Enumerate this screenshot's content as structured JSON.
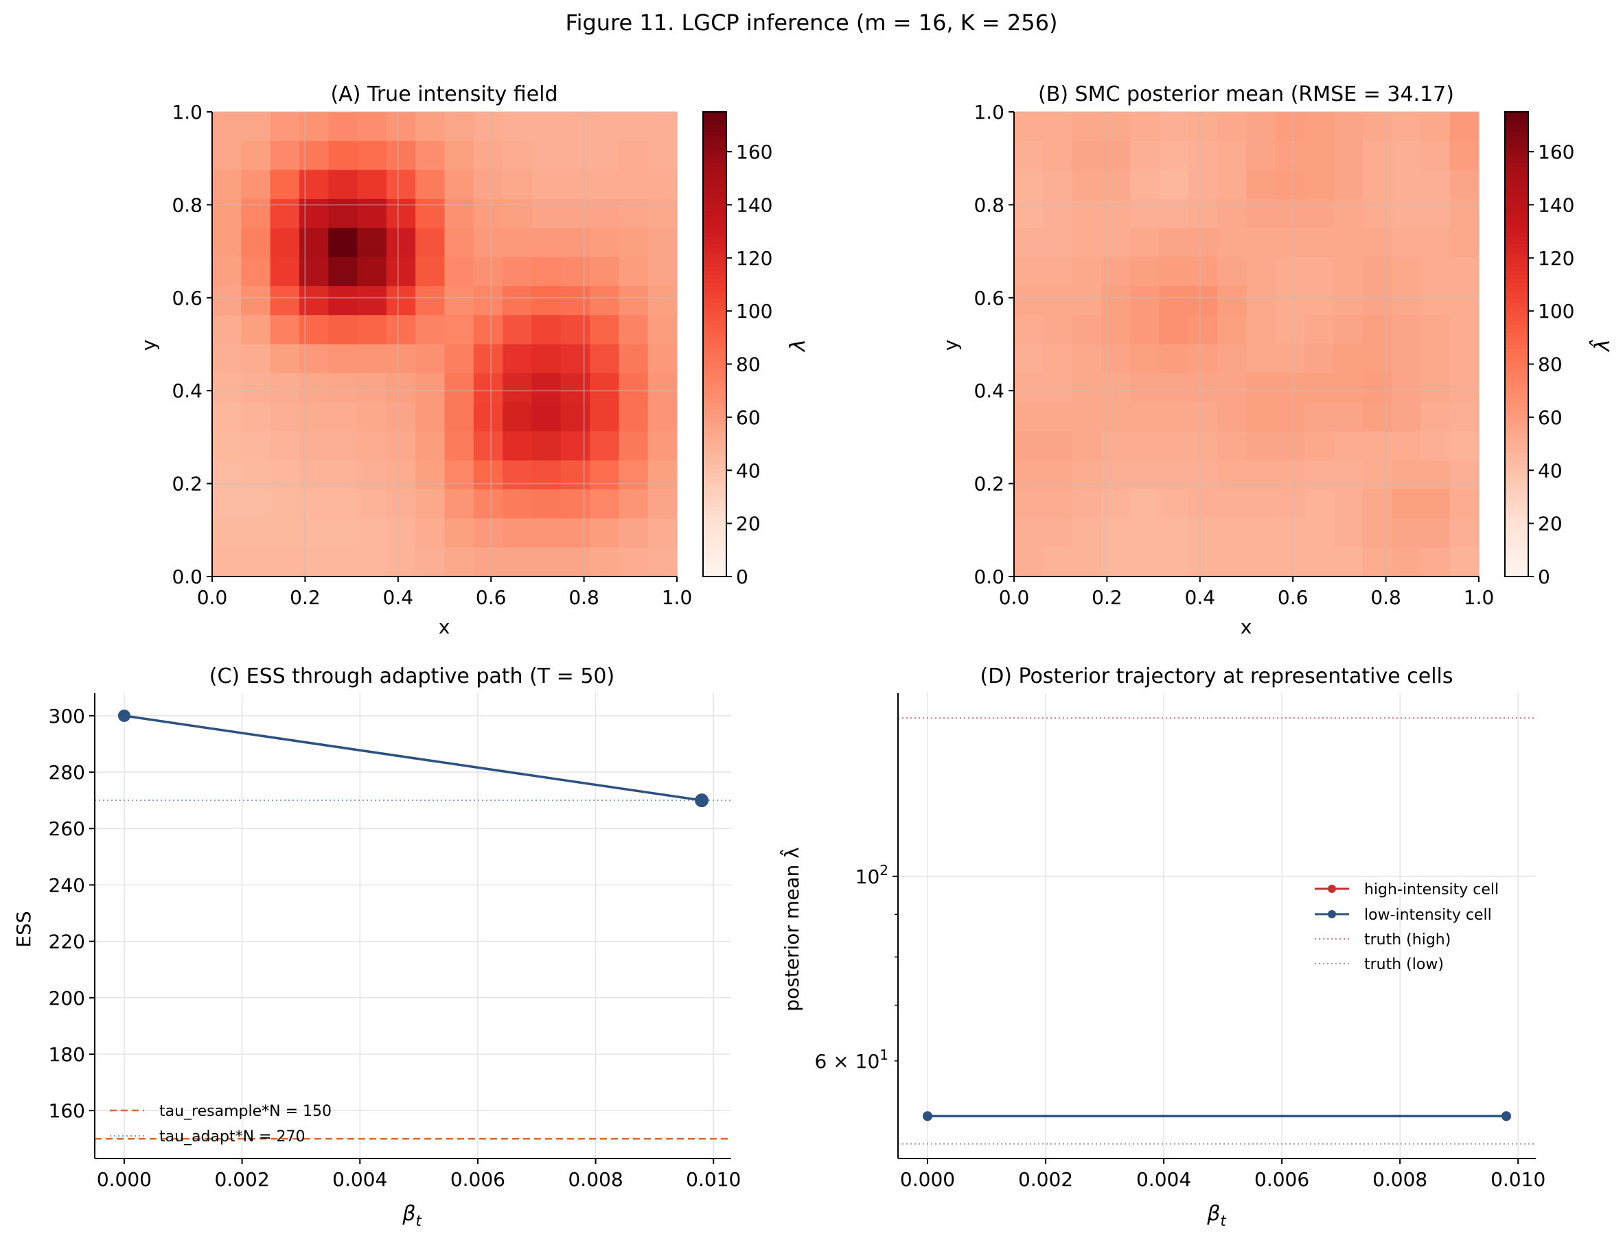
{
  "figure": {
    "title": "Figure 11. LGCP inference (m = 16, K = 256)"
  },
  "colors": {
    "cmap_reds": [
      "#fff5f0",
      "#fee0d2",
      "#fcbba1",
      "#fc9272",
      "#fb6a4a",
      "#ef3b2c",
      "#cb181d",
      "#a50f15",
      "#67000d"
    ],
    "series_blue": "#2c5282",
    "series_red": "#c53030",
    "resample_line": "#dd6b20",
    "adapt_line": "#7a9fd6",
    "truth_high": "#e57373",
    "truth_low": "#8c96b8"
  },
  "chart_data": [
    {
      "type": "heatmap",
      "panel": "A",
      "title": "(A) True intensity field",
      "xlabel": "x",
      "ylabel": "y",
      "xlim": [
        0,
        1
      ],
      "ylim": [
        0,
        1
      ],
      "x_ticks": [
        "0.0",
        "0.2",
        "0.4",
        "0.6",
        "0.8",
        "1.0"
      ],
      "y_ticks": [
        "0.0",
        "0.2",
        "0.4",
        "0.6",
        "0.8",
        "1.0"
      ],
      "colorbar_label": "λ",
      "colorbar_range": [
        0,
        175
      ],
      "colorbar_ticks": [
        "0",
        "20",
        "40",
        "60",
        "80",
        "100",
        "120",
        "140",
        "160"
      ],
      "grid_size": [
        16,
        16
      ],
      "grid": true,
      "rows_top_to_bottom": [
        [
          55,
          55,
          62,
          65,
          70,
          68,
          64,
          58,
          55,
          52,
          50,
          50,
          50,
          50,
          50,
          50
        ],
        [
          55,
          58,
          70,
          80,
          88,
          86,
          80,
          68,
          58,
          54,
          52,
          50,
          50,
          50,
          52,
          50
        ],
        [
          58,
          65,
          88,
          110,
          118,
          112,
          98,
          78,
          62,
          56,
          54,
          52,
          52,
          52,
          52,
          52
        ],
        [
          60,
          72,
          105,
          135,
          145,
          138,
          118,
          92,
          66,
          60,
          58,
          56,
          56,
          56,
          55,
          54
        ],
        [
          60,
          75,
          112,
          150,
          175,
          160,
          130,
          98,
          68,
          62,
          62,
          62,
          62,
          60,
          58,
          56
        ],
        [
          58,
          72,
          110,
          148,
          165,
          155,
          128,
          96,
          70,
          66,
          70,
          72,
          70,
          66,
          60,
          56
        ],
        [
          56,
          66,
          95,
          120,
          130,
          128,
          108,
          84,
          68,
          72,
          82,
          86,
          84,
          76,
          66,
          58
        ],
        [
          52,
          58,
          75,
          88,
          92,
          90,
          84,
          74,
          72,
          84,
          98,
          105,
          102,
          90,
          74,
          60
        ],
        [
          50,
          52,
          58,
          62,
          64,
          64,
          64,
          66,
          76,
          98,
          115,
          118,
          115,
          100,
          80,
          62
        ],
        [
          48,
          50,
          52,
          54,
          55,
          56,
          58,
          62,
          80,
          105,
          122,
          128,
          122,
          108,
          84,
          64
        ],
        [
          46,
          48,
          50,
          52,
          52,
          54,
          56,
          62,
          80,
          106,
          125,
          130,
          124,
          108,
          84,
          64
        ],
        [
          45,
          46,
          48,
          50,
          50,
          52,
          54,
          60,
          78,
          100,
          118,
          120,
          115,
          100,
          80,
          62
        ],
        [
          44,
          45,
          46,
          48,
          48,
          50,
          52,
          58,
          72,
          88,
          98,
          100,
          96,
          86,
          72,
          58
        ],
        [
          44,
          44,
          45,
          46,
          46,
          48,
          50,
          54,
          64,
          74,
          78,
          80,
          78,
          72,
          64,
          56
        ],
        [
          45,
          45,
          45,
          45,
          45,
          46,
          48,
          52,
          58,
          62,
          64,
          64,
          64,
          60,
          56,
          52
        ],
        [
          46,
          46,
          46,
          46,
          46,
          46,
          48,
          50,
          54,
          56,
          56,
          56,
          56,
          54,
          52,
          50
        ]
      ]
    },
    {
      "type": "heatmap",
      "panel": "B",
      "title": "(B) SMC posterior mean (RMSE = 34.17)",
      "xlabel": "x",
      "ylabel": "y",
      "xlim": [
        0,
        1
      ],
      "ylim": [
        0,
        1
      ],
      "x_ticks": [
        "0.0",
        "0.2",
        "0.4",
        "0.6",
        "0.8",
        "1.0"
      ],
      "y_ticks": [
        "0.0",
        "0.2",
        "0.4",
        "0.6",
        "0.8",
        "1.0"
      ],
      "colorbar_label": "λ̂",
      "colorbar_range": [
        0,
        175
      ],
      "colorbar_ticks": [
        "0",
        "20",
        "40",
        "60",
        "80",
        "100",
        "120",
        "140",
        "160"
      ],
      "grid_size": [
        16,
        16
      ],
      "grid": true,
      "rows_top_to_bottom": [
        [
          52,
          52,
          54,
          54,
          52,
          50,
          52,
          54,
          56,
          60,
          58,
          56,
          54,
          52,
          54,
          62
        ],
        [
          50,
          52,
          56,
          56,
          50,
          48,
          50,
          52,
          56,
          58,
          58,
          56,
          52,
          50,
          52,
          60
        ],
        [
          48,
          50,
          54,
          54,
          48,
          46,
          50,
          52,
          58,
          60,
          58,
          56,
          52,
          50,
          50,
          56
        ],
        [
          48,
          50,
          52,
          52,
          50,
          50,
          52,
          54,
          56,
          56,
          56,
          54,
          52,
          50,
          50,
          54
        ],
        [
          50,
          50,
          52,
          52,
          54,
          56,
          56,
          54,
          54,
          54,
          54,
          54,
          54,
          52,
          52,
          54
        ],
        [
          52,
          52,
          54,
          56,
          58,
          60,
          60,
          56,
          54,
          52,
          52,
          54,
          56,
          54,
          52,
          52
        ],
        [
          54,
          54,
          54,
          58,
          62,
          66,
          66,
          60,
          54,
          52,
          52,
          54,
          56,
          54,
          52,
          52
        ],
        [
          52,
          54,
          56,
          58,
          62,
          66,
          64,
          58,
          54,
          52,
          54,
          56,
          58,
          56,
          54,
          52
        ],
        [
          50,
          52,
          54,
          56,
          58,
          60,
          58,
          56,
          54,
          54,
          56,
          58,
          58,
          56,
          54,
          52
        ],
        [
          52,
          52,
          54,
          54,
          56,
          56,
          56,
          56,
          58,
          58,
          58,
          58,
          60,
          56,
          54,
          52
        ],
        [
          54,
          54,
          54,
          54,
          54,
          54,
          54,
          56,
          58,
          58,
          56,
          56,
          58,
          56,
          52,
          50
        ],
        [
          56,
          56,
          54,
          52,
          52,
          52,
          52,
          54,
          56,
          56,
          54,
          52,
          52,
          52,
          50,
          48
        ],
        [
          54,
          54,
          52,
          50,
          50,
          50,
          50,
          52,
          52,
          52,
          50,
          50,
          52,
          54,
          54,
          50
        ],
        [
          52,
          52,
          50,
          48,
          46,
          48,
          50,
          50,
          50,
          50,
          48,
          50,
          54,
          58,
          58,
          52
        ],
        [
          50,
          50,
          48,
          46,
          46,
          46,
          48,
          48,
          48,
          48,
          48,
          50,
          54,
          56,
          56,
          50
        ],
        [
          50,
          48,
          48,
          46,
          46,
          46,
          48,
          48,
          48,
          48,
          48,
          48,
          52,
          54,
          52,
          48
        ]
      ]
    },
    {
      "type": "line",
      "panel": "C",
      "title": "(C) ESS through adaptive path (T = 50)",
      "xlabel": "β",
      "xlabel_sub": "t",
      "ylabel": "ESS",
      "xlim": [
        -0.0005,
        0.0103
      ],
      "ylim": [
        143,
        308
      ],
      "x_ticks": [
        0,
        0.002,
        0.004,
        0.006,
        0.008,
        0.01
      ],
      "x_tick_labels": [
        "0.000",
        "0.002",
        "0.004",
        "0.006",
        "0.008",
        "0.010"
      ],
      "y_ticks": [
        160,
        180,
        200,
        220,
        240,
        260,
        280,
        300
      ],
      "y_tick_labels": [
        "160",
        "180",
        "200",
        "220",
        "240",
        "260",
        "280",
        "300"
      ],
      "grid": true,
      "series": [
        {
          "x": [
            0,
            0.0098
          ],
          "y": [
            300,
            270
          ]
        }
      ],
      "hlines": [
        {
          "name": "tau_resample*N = 150",
          "y": 150,
          "style": "dashed"
        },
        {
          "name": "tau_adapt*N = 270",
          "y": 270,
          "style": "dotted"
        }
      ],
      "legend": "lower-left"
    },
    {
      "type": "line",
      "panel": "D",
      "title": "(D) Posterior trajectory at representative cells",
      "xlabel": "β",
      "xlabel_sub": "t",
      "ylabel": "posterior mean λ̂",
      "yscale": "log",
      "xlim": [
        -0.0005,
        0.0103
      ],
      "ylim": [
        45.8,
        166
      ],
      "x_ticks": [
        0,
        0.002,
        0.004,
        0.006,
        0.008,
        0.01
      ],
      "x_tick_labels": [
        "0.000",
        "0.002",
        "0.004",
        "0.006",
        "0.008",
        "0.010"
      ],
      "y_major_ticks": [
        {
          "value": 100,
          "base": "10",
          "exp": "2"
        }
      ],
      "y_minor_ticks": [
        {
          "value": 60,
          "mant": "6 × 10",
          "exp": "1"
        },
        70,
        80,
        90
      ],
      "grid": true,
      "series": [
        {
          "name": "high-intensity cell",
          "x": [
            0,
            0.0098
          ],
          "y": [
            51.5,
            51.5
          ]
        },
        {
          "name": "low-intensity cell",
          "x": [
            0,
            0.0098
          ],
          "y": [
            51.5,
            51.5
          ]
        }
      ],
      "hlines": [
        {
          "name": "truth (high)",
          "y": 155,
          "style": "dotted"
        },
        {
          "name": "truth (low)",
          "y": 47.7,
          "style": "dotted"
        }
      ],
      "legend": "center-right"
    }
  ]
}
